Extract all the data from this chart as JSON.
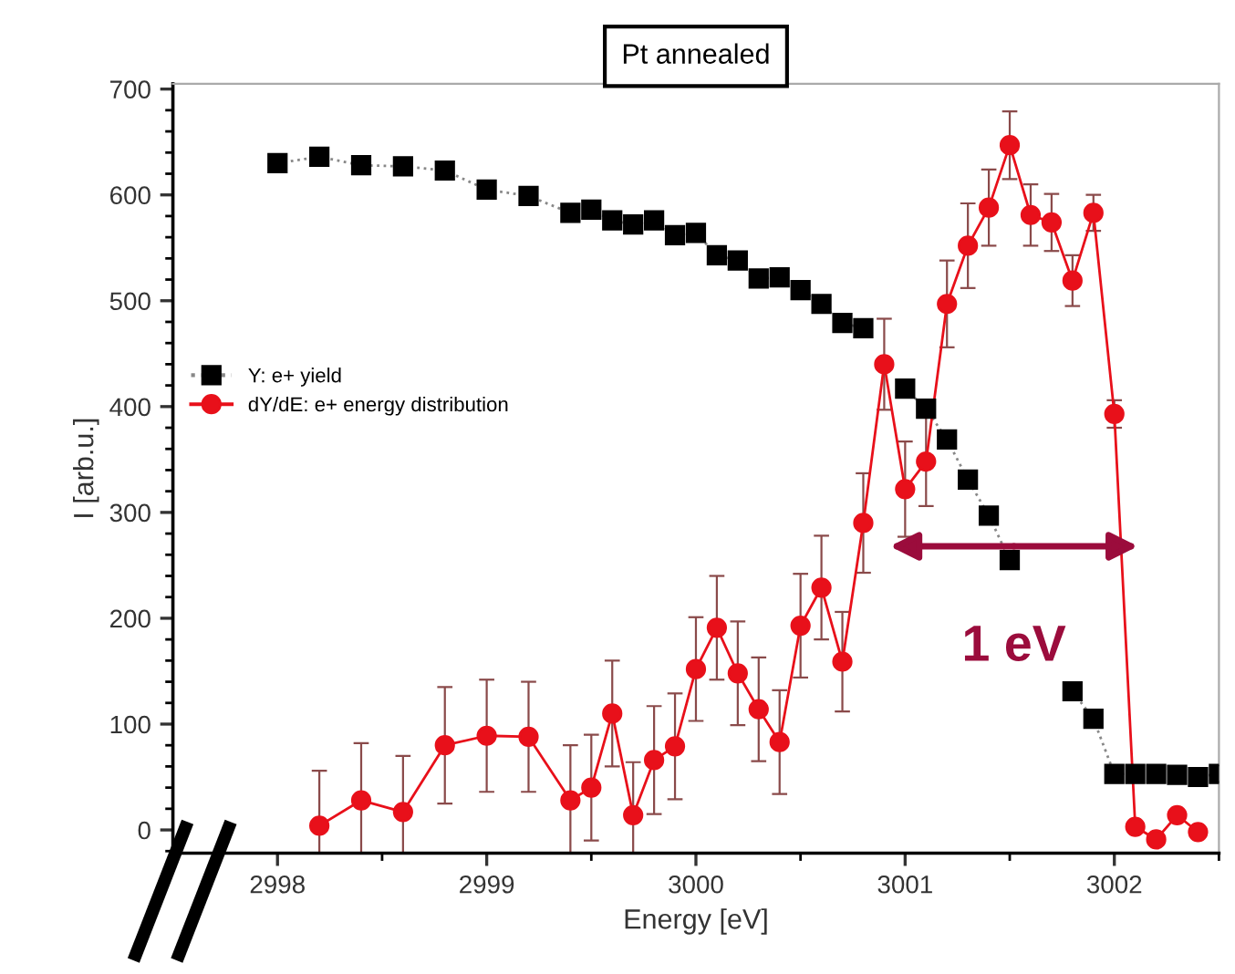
{
  "chart_data": {
    "type": "line",
    "title": "Pt annealed",
    "xlabel": "Energy [eV]",
    "ylabel": "I [arb.u.]",
    "xlim": [
      2997.5,
      3002.5
    ],
    "xticks": [
      2998,
      2999,
      3000,
      3001,
      3002
    ],
    "ylim": [
      -22,
      705
    ],
    "yticks": [
      0,
      100,
      200,
      300,
      400,
      500,
      600,
      700
    ],
    "grid": false,
    "legend": "center left",
    "series": [
      {
        "name": "Y: e+ yield",
        "color": "#000000",
        "marker": "square",
        "line_style": "dotted",
        "x": [
          2998.0,
          2998.2,
          2998.4,
          2998.6,
          2998.8,
          2999.0,
          2999.2,
          2999.4,
          2999.5,
          2999.6,
          2999.7,
          2999.8,
          2999.9,
          3000.0,
          3000.1,
          3000.2,
          3000.3,
          3000.4,
          3000.5,
          3000.6,
          3000.7,
          3000.8,
          3000.9,
          3001.0,
          3001.1,
          3001.2,
          3001.3,
          3001.4,
          3001.5,
          3001.6,
          3001.7,
          3001.8,
          3001.9,
          3002.0,
          3002.1,
          3002.2,
          3002.3,
          3002.4,
          3002.5
        ],
        "values": [
          630,
          636,
          628,
          627,
          623,
          605,
          599,
          583,
          586,
          576,
          572,
          576,
          562,
          564,
          543,
          538,
          521,
          522,
          510,
          497,
          479,
          474,
          null,
          417,
          398,
          369,
          331,
          297,
          255,
          null,
          null,
          131,
          105,
          53,
          53,
          53,
          52,
          50,
          53
        ]
      },
      {
        "name": "dY/dE: e+ energy distribution",
        "color": "#e8101a",
        "marker": "circle",
        "line_style": "solid",
        "x": [
          2998.2,
          2998.4,
          2998.6,
          2998.8,
          2999.0,
          2999.2,
          2999.4,
          2999.5,
          2999.6,
          2999.7,
          2999.8,
          2999.9,
          3000.0,
          3000.1,
          3000.2,
          3000.3,
          3000.4,
          3000.5,
          3000.6,
          3000.7,
          3000.8,
          3000.9,
          3001.0,
          3001.1,
          3001.2,
          3001.3,
          3001.4,
          3001.5,
          3001.6,
          3001.7,
          3001.8,
          3001.9,
          3002.0,
          3002.1,
          3002.2,
          3002.3,
          3002.4
        ],
        "values": [
          4,
          28,
          17,
          80,
          89,
          88,
          28,
          40,
          110,
          14,
          66,
          79,
          152,
          191,
          148,
          114,
          83,
          193,
          229,
          159,
          290,
          440,
          322,
          348,
          497,
          552,
          588,
          647,
          581,
          574,
          519,
          583,
          393,
          3,
          -9,
          14,
          -2
        ],
        "errors": [
          52,
          54,
          53,
          55,
          53,
          52,
          52,
          50,
          50,
          50,
          51,
          50,
          49,
          49,
          49,
          49,
          49,
          49,
          49,
          47,
          47,
          43,
          45,
          42,
          41,
          40,
          36,
          32,
          29,
          27,
          24,
          17,
          13,
          null,
          null,
          null,
          null
        ]
      }
    ],
    "annotations": [
      {
        "text": "1 eV",
        "x": 3001.52,
        "y": 268
      }
    ]
  }
}
